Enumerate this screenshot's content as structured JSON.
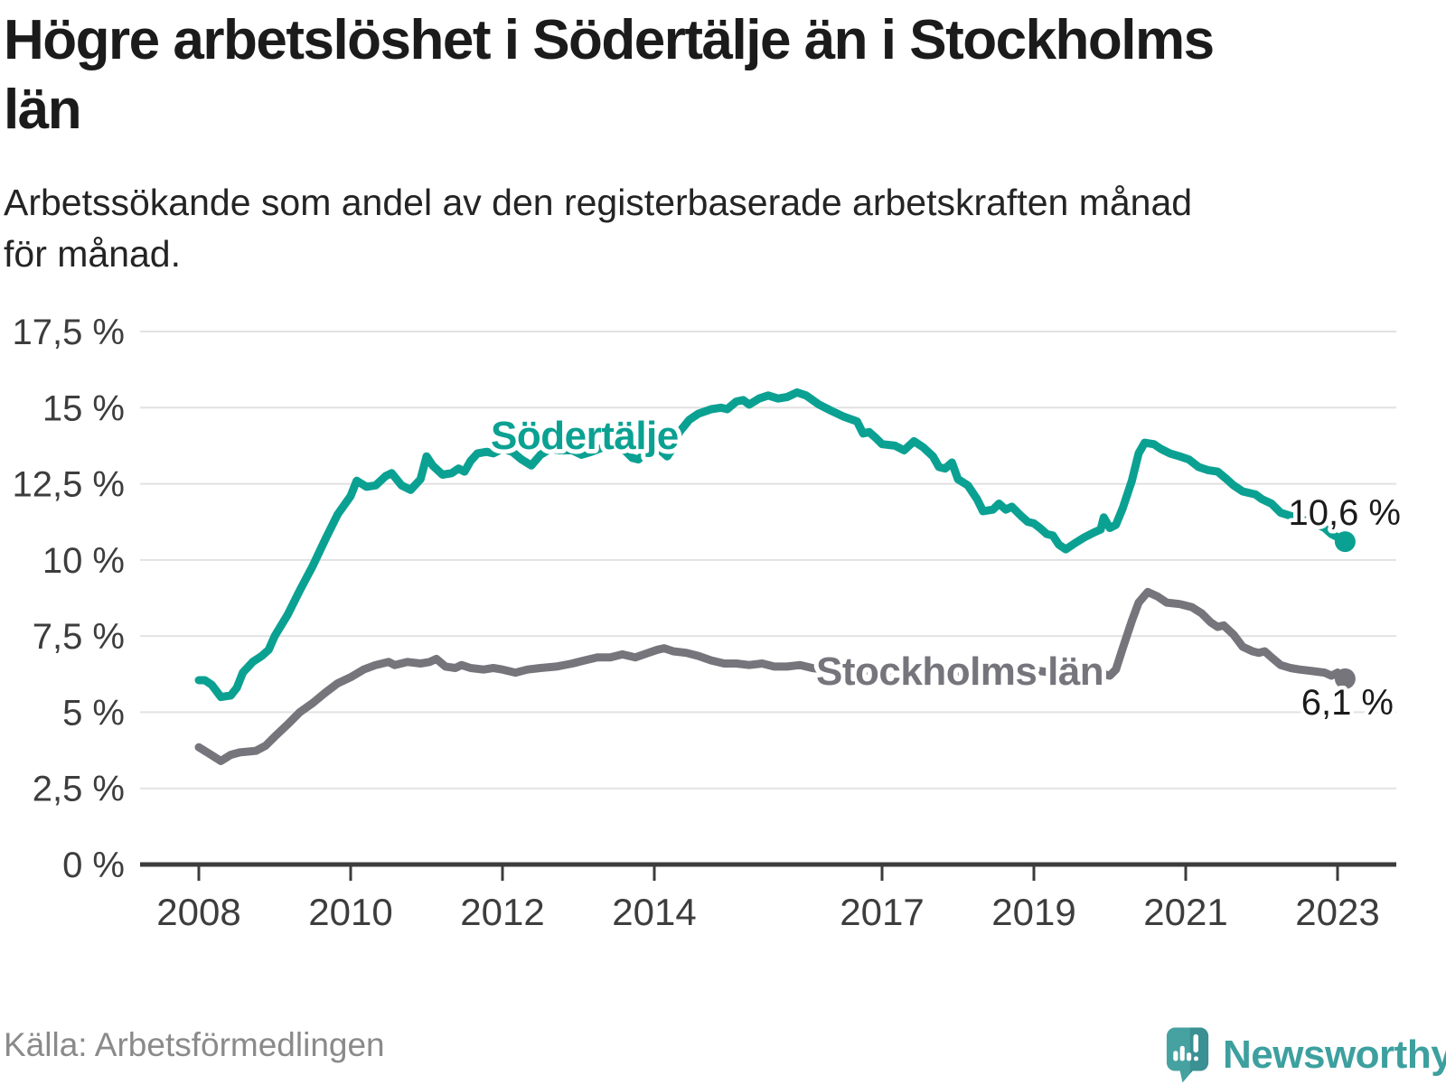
{
  "header": {
    "title": "Högre arbetslöshet i Södertälje än i Stockholms län",
    "title_lines": [
      "Högre arbetslöshet i Södertälje än i Stockholms",
      "län"
    ],
    "subtitle_lines": [
      "Arbetssökande som andel av den registerbaserade arbetskraften månad",
      "för månad."
    ]
  },
  "footer": {
    "source": "Källa: Arbetsförmedlingen",
    "logo_text": "Newsworthy"
  },
  "colors": {
    "soedertaelje": "#0ba192",
    "stockholms_laen": "#76757c",
    "grid": "#e2e2e2",
    "axis": "#3c3c3c",
    "logo_bubble": "#46a2a1",
    "logo_bubble_dark": "#3a9092",
    "logo_text": "#3da09f"
  },
  "chart_data": {
    "type": "line",
    "title": "Högre arbetslöshet i Södertälje än i Stockholms län",
    "subtitle": "Arbetssökande som andel av den registerbaserade arbetskraften månad för månad.",
    "xlabel": "",
    "ylabel": "",
    "x_ticks": [
      2008,
      2010,
      2012,
      2014,
      2017,
      2019,
      2021,
      2023
    ],
    "x_tick_labels": [
      "2008",
      "2010",
      "2012",
      "2014",
      "2017",
      "2019",
      "2021",
      "2023"
    ],
    "y_ticks": [
      0,
      2.5,
      5,
      7.5,
      10,
      12.5,
      15,
      17.5
    ],
    "y_tick_labels": [
      "0 %",
      "2,5 %",
      "5 %",
      "7,5 %",
      "10 %",
      "12,5 %",
      "15 %",
      "17,5 %"
    ],
    "ylim": [
      0,
      17.5
    ],
    "xlim": [
      2007.2,
      2023.8
    ],
    "grid": "horizontal",
    "legend_position": "inline-labels",
    "series": [
      {
        "name": "Södertälje",
        "color": "#0ba192",
        "end_label": "10,6 %",
        "last_value": 10.6,
        "points": [
          [
            2008.0,
            6.05
          ],
          [
            2008.08,
            6.05
          ],
          [
            2008.17,
            5.9
          ],
          [
            2008.29,
            5.5
          ],
          [
            2008.42,
            5.55
          ],
          [
            2008.5,
            5.8
          ],
          [
            2008.58,
            6.3
          ],
          [
            2008.71,
            6.65
          ],
          [
            2008.83,
            6.85
          ],
          [
            2008.92,
            7.05
          ],
          [
            2009.0,
            7.5
          ],
          [
            2009.17,
            8.2
          ],
          [
            2009.33,
            9.0
          ],
          [
            2009.5,
            9.8
          ],
          [
            2009.67,
            10.7
          ],
          [
            2009.83,
            11.5
          ],
          [
            2010.0,
            12.1
          ],
          [
            2010.08,
            12.6
          ],
          [
            2010.21,
            12.4
          ],
          [
            2010.33,
            12.45
          ],
          [
            2010.46,
            12.75
          ],
          [
            2010.54,
            12.85
          ],
          [
            2010.67,
            12.45
          ],
          [
            2010.79,
            12.3
          ],
          [
            2010.92,
            12.65
          ],
          [
            2011.0,
            13.4
          ],
          [
            2011.08,
            13.1
          ],
          [
            2011.21,
            12.8
          ],
          [
            2011.33,
            12.85
          ],
          [
            2011.42,
            13.0
          ],
          [
            2011.5,
            12.9
          ],
          [
            2011.58,
            13.25
          ],
          [
            2011.67,
            13.5
          ],
          [
            2011.79,
            13.55
          ],
          [
            2011.88,
            13.5
          ],
          [
            2012.0,
            13.65
          ],
          [
            2012.13,
            13.55
          ],
          [
            2012.25,
            13.3
          ],
          [
            2012.38,
            13.1
          ],
          [
            2012.5,
            13.45
          ],
          [
            2012.63,
            13.65
          ],
          [
            2012.75,
            13.6
          ],
          [
            2012.92,
            13.6
          ],
          [
            2013.04,
            13.45
          ],
          [
            2013.17,
            13.55
          ],
          [
            2013.33,
            13.7
          ],
          [
            2013.5,
            13.75
          ],
          [
            2013.63,
            13.55
          ],
          [
            2013.71,
            13.35
          ],
          [
            2013.79,
            13.3
          ],
          [
            2013.92,
            13.6
          ],
          [
            2014.0,
            13.75
          ],
          [
            2014.08,
            13.6
          ],
          [
            2014.17,
            13.4
          ],
          [
            2014.25,
            13.7
          ],
          [
            2014.33,
            14.2
          ],
          [
            2014.46,
            14.6
          ],
          [
            2014.58,
            14.8
          ],
          [
            2014.75,
            14.95
          ],
          [
            2014.88,
            15.0
          ],
          [
            2014.96,
            14.95
          ],
          [
            2015.08,
            15.2
          ],
          [
            2015.17,
            15.25
          ],
          [
            2015.25,
            15.1
          ],
          [
            2015.38,
            15.3
          ],
          [
            2015.5,
            15.4
          ],
          [
            2015.63,
            15.3
          ],
          [
            2015.75,
            15.35
          ],
          [
            2015.88,
            15.5
          ],
          [
            2016.0,
            15.4
          ],
          [
            2016.17,
            15.1
          ],
          [
            2016.33,
            14.9
          ],
          [
            2016.5,
            14.7
          ],
          [
            2016.67,
            14.55
          ],
          [
            2016.75,
            14.15
          ],
          [
            2016.83,
            14.2
          ],
          [
            2016.92,
            14.0
          ],
          [
            2017.0,
            13.8
          ],
          [
            2017.17,
            13.75
          ],
          [
            2017.29,
            13.6
          ],
          [
            2017.42,
            13.9
          ],
          [
            2017.54,
            13.7
          ],
          [
            2017.67,
            13.4
          ],
          [
            2017.75,
            13.05
          ],
          [
            2017.83,
            13.0
          ],
          [
            2017.92,
            13.2
          ],
          [
            2018.0,
            12.65
          ],
          [
            2018.13,
            12.45
          ],
          [
            2018.25,
            12.0
          ],
          [
            2018.33,
            11.6
          ],
          [
            2018.46,
            11.65
          ],
          [
            2018.54,
            11.85
          ],
          [
            2018.63,
            11.65
          ],
          [
            2018.71,
            11.75
          ],
          [
            2018.83,
            11.45
          ],
          [
            2018.92,
            11.25
          ],
          [
            2019.0,
            11.2
          ],
          [
            2019.08,
            11.05
          ],
          [
            2019.17,
            10.85
          ],
          [
            2019.25,
            10.8
          ],
          [
            2019.33,
            10.5
          ],
          [
            2019.42,
            10.35
          ],
          [
            2019.54,
            10.55
          ],
          [
            2019.67,
            10.75
          ],
          [
            2019.79,
            10.9
          ],
          [
            2019.88,
            11.0
          ],
          [
            2019.92,
            11.4
          ],
          [
            2020.0,
            11.05
          ],
          [
            2020.08,
            11.15
          ],
          [
            2020.17,
            11.7
          ],
          [
            2020.29,
            12.6
          ],
          [
            2020.38,
            13.5
          ],
          [
            2020.46,
            13.85
          ],
          [
            2020.58,
            13.8
          ],
          [
            2020.67,
            13.65
          ],
          [
            2020.79,
            13.5
          ],
          [
            2020.92,
            13.4
          ],
          [
            2021.04,
            13.3
          ],
          [
            2021.17,
            13.05
          ],
          [
            2021.29,
            12.95
          ],
          [
            2021.42,
            12.9
          ],
          [
            2021.54,
            12.65
          ],
          [
            2021.63,
            12.45
          ],
          [
            2021.75,
            12.25
          ],
          [
            2021.92,
            12.15
          ],
          [
            2022.0,
            12.0
          ],
          [
            2022.13,
            11.85
          ],
          [
            2022.25,
            11.55
          ],
          [
            2022.38,
            11.45
          ],
          [
            2022.5,
            11.35
          ],
          [
            2022.63,
            11.25
          ],
          [
            2022.75,
            11.15
          ],
          [
            2022.83,
            11.05
          ],
          [
            2022.92,
            10.85
          ],
          [
            2023.0,
            10.75
          ],
          [
            2023.1,
            10.6
          ]
        ]
      },
      {
        "name": "Stockholms län",
        "color": "#76757c",
        "end_label": "6,1 %",
        "last_value": 6.1,
        "points": [
          [
            2008.0,
            3.85
          ],
          [
            2008.13,
            3.65
          ],
          [
            2008.29,
            3.4
          ],
          [
            2008.42,
            3.6
          ],
          [
            2008.54,
            3.68
          ],
          [
            2008.75,
            3.73
          ],
          [
            2008.88,
            3.9
          ],
          [
            2009.0,
            4.2
          ],
          [
            2009.17,
            4.6
          ],
          [
            2009.33,
            5.0
          ],
          [
            2009.5,
            5.3
          ],
          [
            2009.67,
            5.65
          ],
          [
            2009.83,
            5.95
          ],
          [
            2010.0,
            6.15
          ],
          [
            2010.17,
            6.4
          ],
          [
            2010.33,
            6.55
          ],
          [
            2010.5,
            6.65
          ],
          [
            2010.58,
            6.55
          ],
          [
            2010.75,
            6.65
          ],
          [
            2010.92,
            6.6
          ],
          [
            2011.04,
            6.65
          ],
          [
            2011.13,
            6.75
          ],
          [
            2011.25,
            6.5
          ],
          [
            2011.38,
            6.45
          ],
          [
            2011.46,
            6.55
          ],
          [
            2011.58,
            6.45
          ],
          [
            2011.75,
            6.4
          ],
          [
            2011.88,
            6.45
          ],
          [
            2012.0,
            6.4
          ],
          [
            2012.17,
            6.3
          ],
          [
            2012.33,
            6.4
          ],
          [
            2012.5,
            6.45
          ],
          [
            2012.71,
            6.5
          ],
          [
            2012.92,
            6.6
          ],
          [
            2013.08,
            6.7
          ],
          [
            2013.25,
            6.8
          ],
          [
            2013.42,
            6.8
          ],
          [
            2013.58,
            6.9
          ],
          [
            2013.75,
            6.8
          ],
          [
            2013.92,
            6.95
          ],
          [
            2014.04,
            7.05
          ],
          [
            2014.13,
            7.1
          ],
          [
            2014.25,
            7.0
          ],
          [
            2014.42,
            6.95
          ],
          [
            2014.58,
            6.85
          ],
          [
            2014.75,
            6.7
          ],
          [
            2014.92,
            6.6
          ],
          [
            2015.08,
            6.6
          ],
          [
            2015.25,
            6.55
          ],
          [
            2015.42,
            6.6
          ],
          [
            2015.58,
            6.5
          ],
          [
            2015.75,
            6.5
          ],
          [
            2015.92,
            6.55
          ],
          [
            2016.08,
            6.45
          ],
          [
            2016.25,
            6.4
          ],
          [
            2016.42,
            6.45
          ],
          [
            2016.58,
            6.4
          ],
          [
            2016.75,
            6.35
          ],
          [
            2016.92,
            6.4
          ],
          [
            2017.08,
            6.35
          ],
          [
            2017.25,
            6.35
          ],
          [
            2017.42,
            6.35
          ],
          [
            2017.58,
            6.3
          ],
          [
            2017.75,
            6.35
          ],
          [
            2017.92,
            6.3
          ],
          [
            2018.08,
            6.35
          ],
          [
            2018.25,
            6.3
          ],
          [
            2018.42,
            6.35
          ],
          [
            2018.58,
            6.3
          ],
          [
            2018.75,
            6.35
          ],
          [
            2018.92,
            6.3
          ],
          [
            2019.08,
            6.35
          ],
          [
            2019.25,
            6.3
          ],
          [
            2019.42,
            6.35
          ],
          [
            2019.58,
            6.3
          ],
          [
            2019.75,
            6.35
          ],
          [
            2019.92,
            6.25
          ],
          [
            2020.0,
            6.2
          ],
          [
            2020.08,
            6.4
          ],
          [
            2020.17,
            7.1
          ],
          [
            2020.29,
            8.0
          ],
          [
            2020.38,
            8.6
          ],
          [
            2020.5,
            8.95
          ],
          [
            2020.63,
            8.8
          ],
          [
            2020.75,
            8.6
          ],
          [
            2020.92,
            8.55
          ],
          [
            2021.0,
            8.5
          ],
          [
            2021.08,
            8.45
          ],
          [
            2021.21,
            8.25
          ],
          [
            2021.33,
            7.95
          ],
          [
            2021.42,
            7.8
          ],
          [
            2021.5,
            7.85
          ],
          [
            2021.63,
            7.55
          ],
          [
            2021.75,
            7.15
          ],
          [
            2021.88,
            7.0
          ],
          [
            2021.96,
            6.95
          ],
          [
            2022.04,
            7.0
          ],
          [
            2022.13,
            6.8
          ],
          [
            2022.25,
            6.55
          ],
          [
            2022.38,
            6.45
          ],
          [
            2022.5,
            6.4
          ],
          [
            2022.67,
            6.35
          ],
          [
            2022.83,
            6.3
          ],
          [
            2022.92,
            6.2
          ],
          [
            2023.0,
            6.3
          ],
          [
            2023.1,
            6.1
          ]
        ]
      }
    ]
  }
}
